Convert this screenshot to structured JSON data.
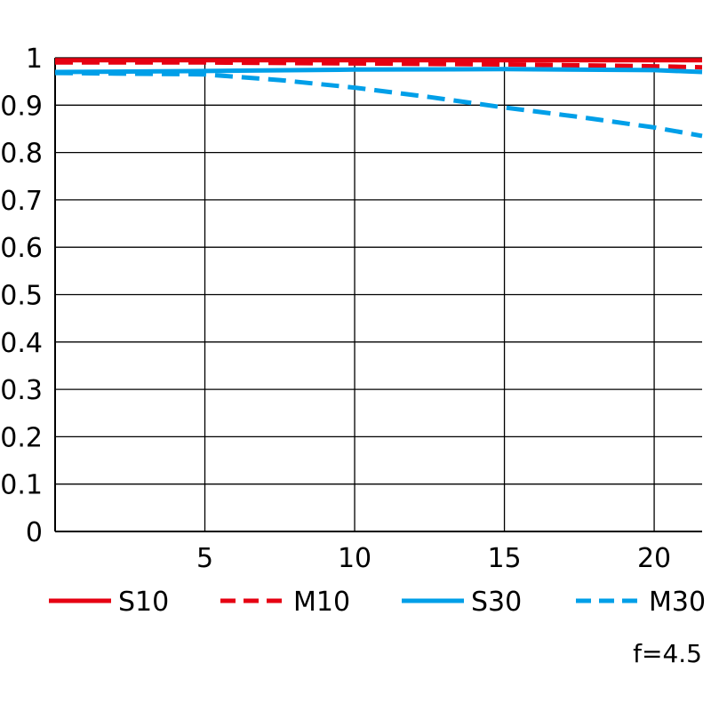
{
  "chart_data": {
    "type": "line",
    "title": "",
    "xlabel": "",
    "ylabel": "",
    "xlim": [
      0,
      21.6
    ],
    "ylim": [
      0,
      1
    ],
    "x_ticks": [
      5,
      10,
      15,
      20
    ],
    "x_tick_labels": [
      "5",
      "10",
      "15",
      "20"
    ],
    "y_ticks": [
      0,
      0.1,
      0.2,
      0.3,
      0.4,
      0.5,
      0.6,
      0.7,
      0.8,
      0.9,
      1
    ],
    "y_tick_labels": [
      "0",
      "0.1",
      "0.2",
      "0.3",
      "0.4",
      "0.5",
      "0.6",
      "0.7",
      "0.8",
      "0.9",
      "1"
    ],
    "grid": true,
    "legend_position": "bottom",
    "annotation": "f=4.5",
    "series": [
      {
        "name": "S10",
        "color": "#e60012",
        "dash": "solid",
        "x": [
          0,
          5,
          10,
          15,
          20,
          21.6
        ],
        "y": [
          0.995,
          0.995,
          0.995,
          0.995,
          0.995,
          0.995
        ]
      },
      {
        "name": "M10",
        "color": "#e60012",
        "dash": "dashed",
        "x": [
          0,
          5,
          10,
          15,
          20,
          21.6
        ],
        "y": [
          0.99,
          0.99,
          0.988,
          0.986,
          0.982,
          0.98
        ]
      },
      {
        "name": "S30",
        "color": "#009fe8",
        "dash": "solid",
        "x": [
          0,
          5,
          10,
          15,
          20,
          21.6
        ],
        "y": [
          0.97,
          0.972,
          0.975,
          0.976,
          0.974,
          0.97
        ]
      },
      {
        "name": "M30",
        "color": "#009fe8",
        "dash": "dashed",
        "x": [
          0,
          5,
          7.5,
          10,
          12.5,
          15,
          17.5,
          20,
          21.6
        ],
        "y": [
          0.968,
          0.965,
          0.953,
          0.937,
          0.917,
          0.895,
          0.875,
          0.853,
          0.835
        ]
      }
    ]
  }
}
